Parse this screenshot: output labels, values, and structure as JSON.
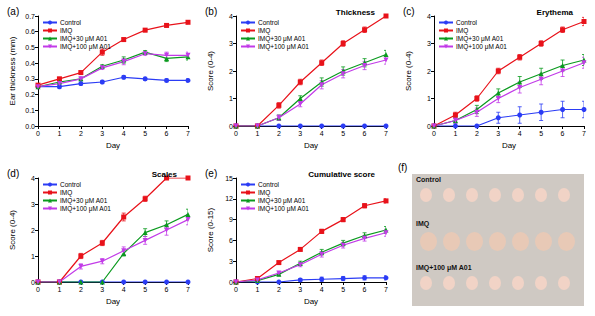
{
  "chart_data": [
    {
      "type": "line",
      "panel_label": "(a)",
      "x_label": "Day",
      "y_label": "Ear thickness (mm)",
      "x": [
        0,
        1,
        2,
        3,
        4,
        5,
        6,
        7
      ],
      "xlim": [
        0,
        7
      ],
      "xticks": [
        0,
        1,
        2,
        3,
        4,
        5,
        6,
        7
      ],
      "ylim": [
        0,
        0.7
      ],
      "yticks": [
        {
          "value": 0,
          "label": "0.0"
        },
        0.1,
        0.2,
        0.3,
        0.4,
        0.5,
        0.6,
        0.7
      ],
      "grid": false,
      "legend": "upper left",
      "series": [
        {
          "name": "Control",
          "color": "#2b3cf5",
          "marker": "circle",
          "values": [
            0.25,
            0.25,
            0.27,
            0.28,
            0.31,
            0.3,
            0.29,
            0.29
          ],
          "errors": [
            0.01,
            0.01,
            0.01,
            0.01,
            0.01,
            0.01,
            0.01,
            0.01
          ]
        },
        {
          "name": "IMQ",
          "color": "#e8121a",
          "marker": "square",
          "values": [
            0.26,
            0.3,
            0.34,
            0.47,
            0.55,
            0.61,
            0.64,
            0.66
          ],
          "errors": [
            0.01,
            0.01,
            0.01,
            0.02,
            0.01,
            0.01,
            0.01,
            0.01
          ]
        },
        {
          "name": "IMQ+30 μM A01",
          "color": "#0a9a1e",
          "marker": "triangle",
          "values": [
            0.25,
            0.28,
            0.3,
            0.38,
            0.42,
            0.47,
            0.43,
            0.44
          ],
          "errors": [
            0.01,
            0.01,
            0.01,
            0.01,
            0.02,
            0.01,
            0.02,
            0.02
          ]
        },
        {
          "name": "IMQ+100 μM A01",
          "color": "#c23be8",
          "marker": "triangle_down",
          "values": [
            0.25,
            0.27,
            0.3,
            0.37,
            0.41,
            0.46,
            0.45,
            0.45
          ],
          "errors": [
            0.01,
            0.01,
            0.01,
            0.01,
            0.02,
            0.01,
            0.02,
            0.02
          ]
        }
      ]
    },
    {
      "type": "line",
      "panel_label": "(b)",
      "title": "Thickness",
      "x_label": "Day",
      "y_label": "Score (0-4)",
      "x": [
        0,
        1,
        2,
        3,
        4,
        5,
        6,
        7
      ],
      "xlim": [
        0,
        7
      ],
      "xticks": [
        0,
        1,
        2,
        3,
        4,
        5,
        6,
        7
      ],
      "ylim": [
        0,
        4
      ],
      "yticks": [
        0,
        1,
        2,
        3,
        4
      ],
      "grid": false,
      "legend": "upper left",
      "series": [
        {
          "name": "Control",
          "color": "#2b3cf5",
          "marker": "circle",
          "values": [
            0,
            0,
            0,
            0,
            0,
            0,
            0,
            0
          ],
          "errors": [
            0,
            0,
            0,
            0,
            0,
            0,
            0,
            0
          ]
        },
        {
          "name": "IMQ",
          "color": "#e8121a",
          "marker": "square",
          "values": [
            0,
            0,
            0.75,
            1.6,
            2.3,
            3.0,
            3.5,
            4.0
          ],
          "errors": [
            0,
            0,
            0.1,
            0.1,
            0.1,
            0.1,
            0.1,
            0.05
          ]
        },
        {
          "name": "IMQ+30 μM A01",
          "color": "#0a9a1e",
          "marker": "triangle",
          "values": [
            0,
            0,
            0.3,
            1.0,
            1.6,
            2.0,
            2.3,
            2.6
          ],
          "errors": [
            0,
            0,
            0.1,
            0.1,
            0.15,
            0.15,
            0.15,
            0.15
          ]
        },
        {
          "name": "IMQ+100 μM A01",
          "color": "#c23be8",
          "marker": "triangle_down",
          "values": [
            0,
            0,
            0.3,
            0.8,
            1.5,
            1.9,
            2.2,
            2.4
          ],
          "errors": [
            0,
            0,
            0.1,
            0.1,
            0.15,
            0.15,
            0.15,
            0.15
          ]
        }
      ]
    },
    {
      "type": "line",
      "panel_label": "(c)",
      "title": "Erythema",
      "x_label": "Day",
      "y_label": "Score (0-4)",
      "x": [
        0,
        1,
        2,
        3,
        4,
        5,
        6,
        7
      ],
      "xlim": [
        0,
        7
      ],
      "xticks": [
        0,
        1,
        2,
        3,
        4,
        5,
        6,
        7
      ],
      "ylim": [
        0,
        4
      ],
      "yticks": [
        0,
        1,
        2,
        3,
        4
      ],
      "grid": false,
      "legend": "upper left",
      "series": [
        {
          "name": "Control",
          "color": "#2b3cf5",
          "marker": "circle",
          "values": [
            0,
            0,
            0,
            0.3,
            0.4,
            0.5,
            0.6,
            0.6
          ],
          "errors": [
            0,
            0,
            0,
            0.2,
            0.3,
            0.3,
            0.3,
            0.3
          ]
        },
        {
          "name": "IMQ",
          "color": "#e8121a",
          "marker": "square",
          "values": [
            0,
            0.4,
            1.0,
            2.0,
            2.5,
            3.0,
            3.5,
            3.8
          ],
          "errors": [
            0,
            0.1,
            0.1,
            0.1,
            0.1,
            0.1,
            0.1,
            0.15
          ]
        },
        {
          "name": "IMQ+30 μM A01",
          "color": "#0a9a1e",
          "marker": "triangle",
          "values": [
            0,
            0.2,
            0.6,
            1.2,
            1.6,
            1.9,
            2.2,
            2.4
          ],
          "errors": [
            0,
            0.1,
            0.15,
            0.15,
            0.2,
            0.2,
            0.2,
            0.2
          ]
        },
        {
          "name": "IMQ+100 μM A01",
          "color": "#c23be8",
          "marker": "triangle_down",
          "values": [
            0,
            0.2,
            0.5,
            1.0,
            1.4,
            1.7,
            2.0,
            2.3
          ],
          "errors": [
            0,
            0.1,
            0.15,
            0.15,
            0.2,
            0.2,
            0.2,
            0.2
          ]
        }
      ]
    },
    {
      "type": "line",
      "panel_label": "(d)",
      "title": "Scales",
      "x_label": "Day",
      "y_label": "Score (0-4)",
      "x": [
        0,
        1,
        2,
        3,
        4,
        5,
        6,
        7
      ],
      "xlim": [
        0,
        7
      ],
      "xticks": [
        0,
        1,
        2,
        3,
        4,
        5,
        6,
        7
      ],
      "ylim": [
        0,
        4
      ],
      "yticks": [
        0,
        1,
        2,
        3,
        4
      ],
      "grid": false,
      "legend": "upper left",
      "series": [
        {
          "name": "Control",
          "color": "#2b3cf5",
          "marker": "circle",
          "values": [
            0,
            0,
            0,
            0,
            0,
            0,
            0,
            0
          ],
          "errors": [
            0,
            0,
            0,
            0,
            0,
            0,
            0,
            0
          ]
        },
        {
          "name": "IMQ",
          "color": "#e8121a",
          "marker": "square",
          "values": [
            0,
            0,
            1.0,
            1.5,
            2.5,
            3.2,
            4.0,
            4.0
          ],
          "errors": [
            0,
            0,
            0.1,
            0.1,
            0.15,
            0.1,
            0.05,
            0.05
          ]
        },
        {
          "name": "IMQ+30 μM A01",
          "color": "#0a9a1e",
          "marker": "triangle",
          "values": [
            0,
            0,
            0,
            0,
            1.1,
            1.9,
            2.2,
            2.6
          ],
          "errors": [
            0,
            0,
            0,
            0,
            0.1,
            0.15,
            0.15,
            0.2
          ]
        },
        {
          "name": "IMQ+100 μM A01",
          "color": "#c23be8",
          "marker": "triangle_down",
          "values": [
            0,
            0,
            0.6,
            0.8,
            1.2,
            1.6,
            2.0,
            2.4
          ],
          "errors": [
            0,
            0,
            0.1,
            0.1,
            0.15,
            0.15,
            0.2,
            0.2
          ]
        }
      ]
    },
    {
      "type": "line",
      "panel_label": "(e)",
      "title": "Cumulative score",
      "x_label": "Day",
      "y_label": "Score (0-15)",
      "x": [
        0,
        1,
        2,
        3,
        4,
        5,
        6,
        7
      ],
      "xlim": [
        0,
        7
      ],
      "xticks": [
        0,
        1,
        2,
        3,
        4,
        5,
        6,
        7
      ],
      "ylim": [
        0,
        15
      ],
      "yticks": [
        0,
        3,
        6,
        9,
        12,
        15
      ],
      "grid": false,
      "legend": "upper left",
      "series": [
        {
          "name": "Control",
          "color": "#2b3cf5",
          "marker": "circle",
          "values": [
            0,
            0,
            0,
            0.3,
            0.4,
            0.5,
            0.6,
            0.6
          ],
          "errors": [
            0,
            0,
            0,
            0.2,
            0.3,
            0.3,
            0.3,
            0.3
          ]
        },
        {
          "name": "IMQ",
          "color": "#e8121a",
          "marker": "square",
          "values": [
            0,
            0.5,
            2.8,
            4.7,
            7.3,
            9.0,
            11.0,
            11.7
          ],
          "errors": [
            0,
            0.1,
            0.2,
            0.2,
            0.3,
            0.3,
            0.3,
            0.3
          ]
        },
        {
          "name": "IMQ+30 μM A01",
          "color": "#0a9a1e",
          "marker": "triangle",
          "values": [
            0,
            0.2,
            1.1,
            2.7,
            4.3,
            5.6,
            6.7,
            7.5
          ],
          "errors": [
            0,
            0.1,
            0.2,
            0.3,
            0.4,
            0.4,
            0.4,
            0.5
          ]
        },
        {
          "name": "IMQ+100 μM A01",
          "color": "#c23be8",
          "marker": "triangle_down",
          "values": [
            0,
            0.3,
            1.3,
            2.5,
            4.0,
            5.3,
            6.3,
            7.1
          ],
          "errors": [
            0,
            0.1,
            0.2,
            0.3,
            0.4,
            0.4,
            0.4,
            0.5
          ]
        }
      ]
    }
  ],
  "photo_panel": {
    "panel_label": "(f)",
    "labels": [
      "Control",
      "IMQ",
      "IMQ+100 μM A01"
    ]
  }
}
